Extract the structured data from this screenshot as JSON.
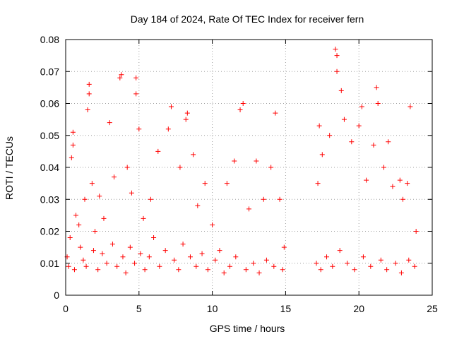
{
  "chart_data": {
    "type": "scatter",
    "title": "Day 184 of 2024, Rate Of TEC Index for receiver fern",
    "xlabel": "GPS time / hours",
    "ylabel": "ROTI / TECUs",
    "xlim": [
      0,
      25
    ],
    "ylim": [
      0,
      0.08
    ],
    "xticks": [
      0,
      5,
      10,
      15,
      20,
      25
    ],
    "xtick_labels": [
      "0",
      "5",
      "10",
      "15",
      "20",
      "25"
    ],
    "yticks": [
      0,
      0.01,
      0.02,
      0.03,
      0.04,
      0.05,
      0.06,
      0.07,
      0.08
    ],
    "ytick_labels": [
      "0",
      "0.01",
      "0.02",
      "0.03",
      "0.04",
      "0.05",
      "0.06",
      "0.07",
      "0.08"
    ],
    "grid": true,
    "marker": "+",
    "series": [
      {
        "name": "ROTI",
        "color": "#ff0000",
        "points": [
          [
            0.2,
            0.009
          ],
          [
            0.4,
            0.043
          ],
          [
            0.5,
            0.047
          ],
          [
            0.5,
            0.051
          ],
          [
            0.7,
            0.025
          ],
          [
            1.0,
            0.015
          ],
          [
            1.3,
            0.03
          ],
          [
            1.5,
            0.058
          ],
          [
            1.6,
            0.063
          ],
          [
            1.6,
            0.066
          ],
          [
            1.8,
            0.035
          ],
          [
            2.0,
            0.02
          ],
          [
            2.3,
            0.031
          ],
          [
            2.6,
            0.024
          ],
          [
            3.0,
            0.054
          ],
          [
            3.3,
            0.037
          ],
          [
            3.7,
            0.068
          ],
          [
            3.8,
            0.069
          ],
          [
            4.2,
            0.04
          ],
          [
            4.5,
            0.032
          ],
          [
            4.8,
            0.063
          ],
          [
            4.8,
            0.068
          ],
          [
            5.0,
            0.052
          ],
          [
            5.3,
            0.024
          ],
          [
            5.8,
            0.03
          ],
          [
            6.3,
            0.045
          ],
          [
            7.0,
            0.052
          ],
          [
            7.2,
            0.059
          ],
          [
            7.8,
            0.04
          ],
          [
            8.2,
            0.055
          ],
          [
            8.3,
            0.057
          ],
          [
            8.7,
            0.044
          ],
          [
            9.0,
            0.028
          ],
          [
            9.5,
            0.035
          ],
          [
            10.0,
            0.022
          ],
          [
            10.5,
            0.014
          ],
          [
            11.0,
            0.035
          ],
          [
            11.5,
            0.042
          ],
          [
            11.9,
            0.058
          ],
          [
            12.1,
            0.06
          ],
          [
            12.5,
            0.027
          ],
          [
            13.0,
            0.042
          ],
          [
            13.5,
            0.03
          ],
          [
            14.0,
            0.04
          ],
          [
            14.3,
            0.057
          ],
          [
            14.6,
            0.03
          ],
          [
            14.9,
            0.015
          ],
          [
            17.2,
            0.035
          ],
          [
            17.3,
            0.053
          ],
          [
            17.5,
            0.044
          ],
          [
            18.0,
            0.05
          ],
          [
            18.4,
            0.077
          ],
          [
            18.5,
            0.075
          ],
          [
            18.5,
            0.07
          ],
          [
            18.8,
            0.064
          ],
          [
            19.0,
            0.055
          ],
          [
            19.5,
            0.048
          ],
          [
            20.0,
            0.053
          ],
          [
            20.2,
            0.059
          ],
          [
            20.5,
            0.036
          ],
          [
            21.0,
            0.047
          ],
          [
            21.2,
            0.065
          ],
          [
            21.3,
            0.06
          ],
          [
            21.7,
            0.04
          ],
          [
            22.0,
            0.048
          ],
          [
            22.3,
            0.034
          ],
          [
            22.8,
            0.036
          ],
          [
            23.0,
            0.03
          ],
          [
            23.3,
            0.035
          ],
          [
            23.5,
            0.059
          ],
          [
            23.9,
            0.02
          ],
          [
            0.1,
            0.012
          ],
          [
            0.3,
            0.018
          ],
          [
            0.6,
            0.008
          ],
          [
            0.9,
            0.022
          ],
          [
            1.2,
            0.011
          ],
          [
            1.4,
            0.009
          ],
          [
            1.9,
            0.014
          ],
          [
            2.2,
            0.008
          ],
          [
            2.5,
            0.013
          ],
          [
            2.8,
            0.01
          ],
          [
            3.2,
            0.016
          ],
          [
            3.5,
            0.009
          ],
          [
            3.9,
            0.012
          ],
          [
            4.1,
            0.007
          ],
          [
            4.4,
            0.015
          ],
          [
            4.7,
            0.01
          ],
          [
            5.1,
            0.013
          ],
          [
            5.4,
            0.008
          ],
          [
            5.7,
            0.012
          ],
          [
            6.0,
            0.018
          ],
          [
            6.4,
            0.009
          ],
          [
            6.8,
            0.014
          ],
          [
            7.4,
            0.011
          ],
          [
            7.7,
            0.008
          ],
          [
            8.0,
            0.016
          ],
          [
            8.5,
            0.012
          ],
          [
            8.9,
            0.009
          ],
          [
            9.3,
            0.013
          ],
          [
            9.7,
            0.008
          ],
          [
            10.2,
            0.011
          ],
          [
            10.8,
            0.007
          ],
          [
            11.2,
            0.009
          ],
          [
            11.6,
            0.012
          ],
          [
            12.3,
            0.008
          ],
          [
            12.8,
            0.01
          ],
          [
            13.2,
            0.007
          ],
          [
            13.7,
            0.011
          ],
          [
            14.2,
            0.009
          ],
          [
            14.8,
            0.008
          ],
          [
            17.1,
            0.01
          ],
          [
            17.4,
            0.008
          ],
          [
            17.8,
            0.012
          ],
          [
            18.2,
            0.009
          ],
          [
            18.7,
            0.014
          ],
          [
            19.2,
            0.01
          ],
          [
            19.7,
            0.008
          ],
          [
            20.3,
            0.012
          ],
          [
            20.8,
            0.009
          ],
          [
            21.5,
            0.011
          ],
          [
            21.9,
            0.008
          ],
          [
            22.5,
            0.01
          ],
          [
            22.9,
            0.007
          ],
          [
            23.4,
            0.011
          ],
          [
            23.8,
            0.009
          ]
        ]
      }
    ]
  }
}
